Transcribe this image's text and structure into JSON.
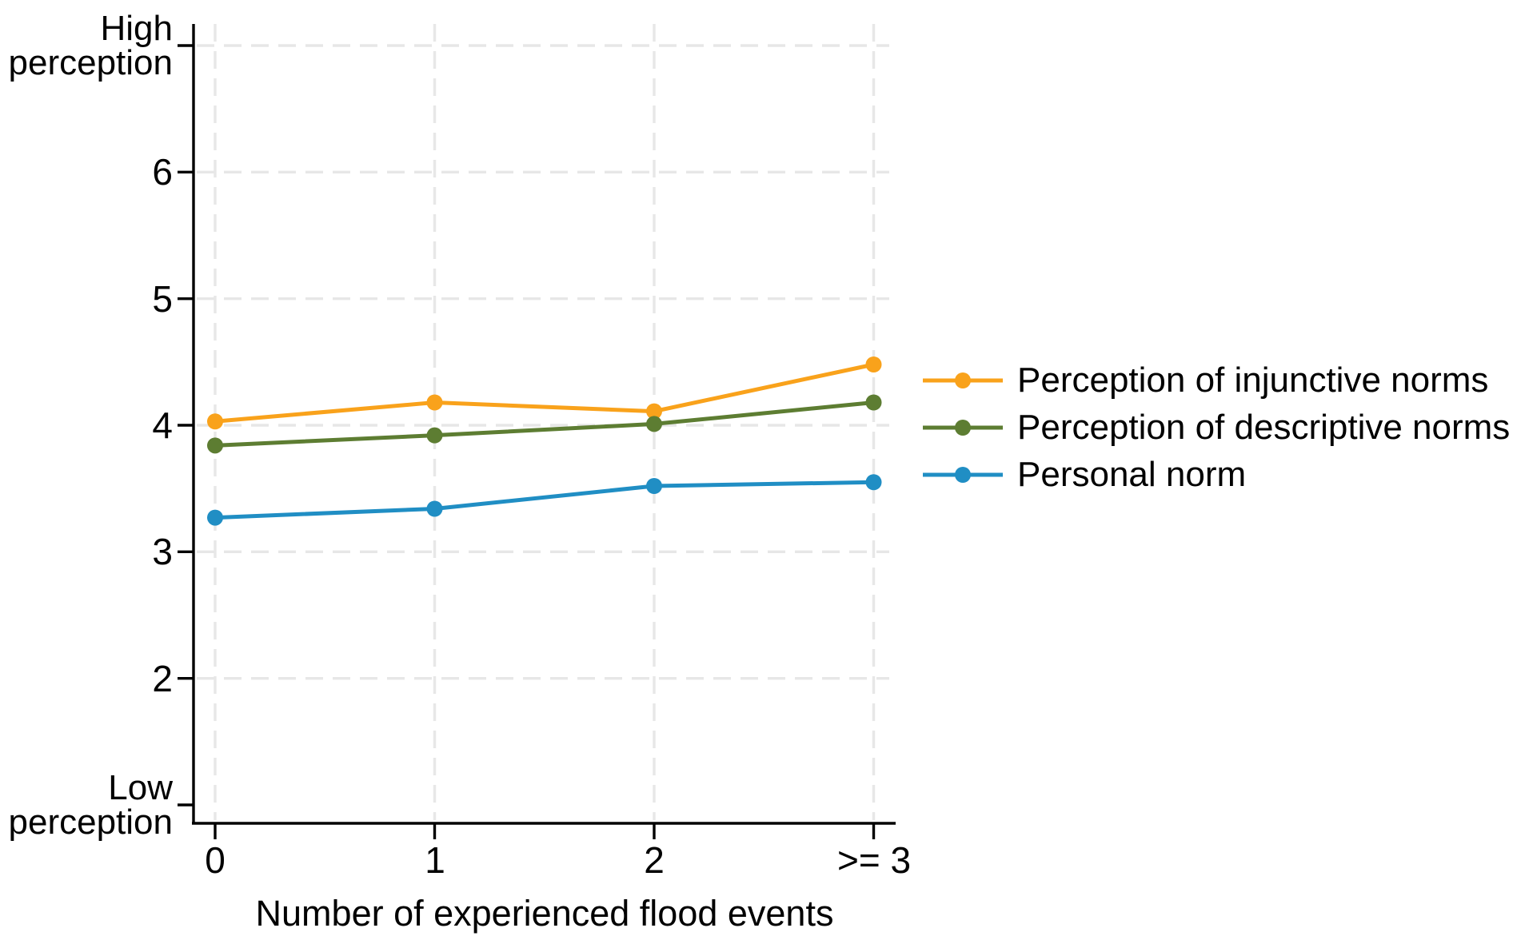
{
  "chart_data": {
    "type": "line",
    "xlabel": "Number of experienced flood events",
    "x_categories": [
      "0",
      "1",
      "2",
      ">= 3"
    ],
    "ylim": [
      1,
      7
    ],
    "y_ticks": [
      {
        "value": 7,
        "line1": "High",
        "line2": "perception"
      },
      {
        "value": 6,
        "label": "6"
      },
      {
        "value": 5,
        "label": "5"
      },
      {
        "value": 4,
        "label": "4"
      },
      {
        "value": 3,
        "label": "3"
      },
      {
        "value": 2,
        "label": "2"
      },
      {
        "value": 1,
        "line1": "Low",
        "line2": "perception"
      }
    ],
    "grid": true,
    "grid_y_values": [
      7,
      6,
      5,
      4,
      3,
      2
    ],
    "legend_position": "right-middle",
    "series": [
      {
        "name": "Perception of injunctive norms",
        "color": "#F9A21B",
        "values": [
          4.03,
          4.18,
          4.11,
          4.48
        ]
      },
      {
        "name": "Perception of descriptive norms",
        "color": "#5D7D32",
        "values": [
          3.84,
          3.92,
          4.01,
          4.18
        ]
      },
      {
        "name": "Personal norm",
        "color": "#208EC4",
        "values": [
          3.27,
          3.34,
          3.52,
          3.55
        ]
      }
    ]
  }
}
